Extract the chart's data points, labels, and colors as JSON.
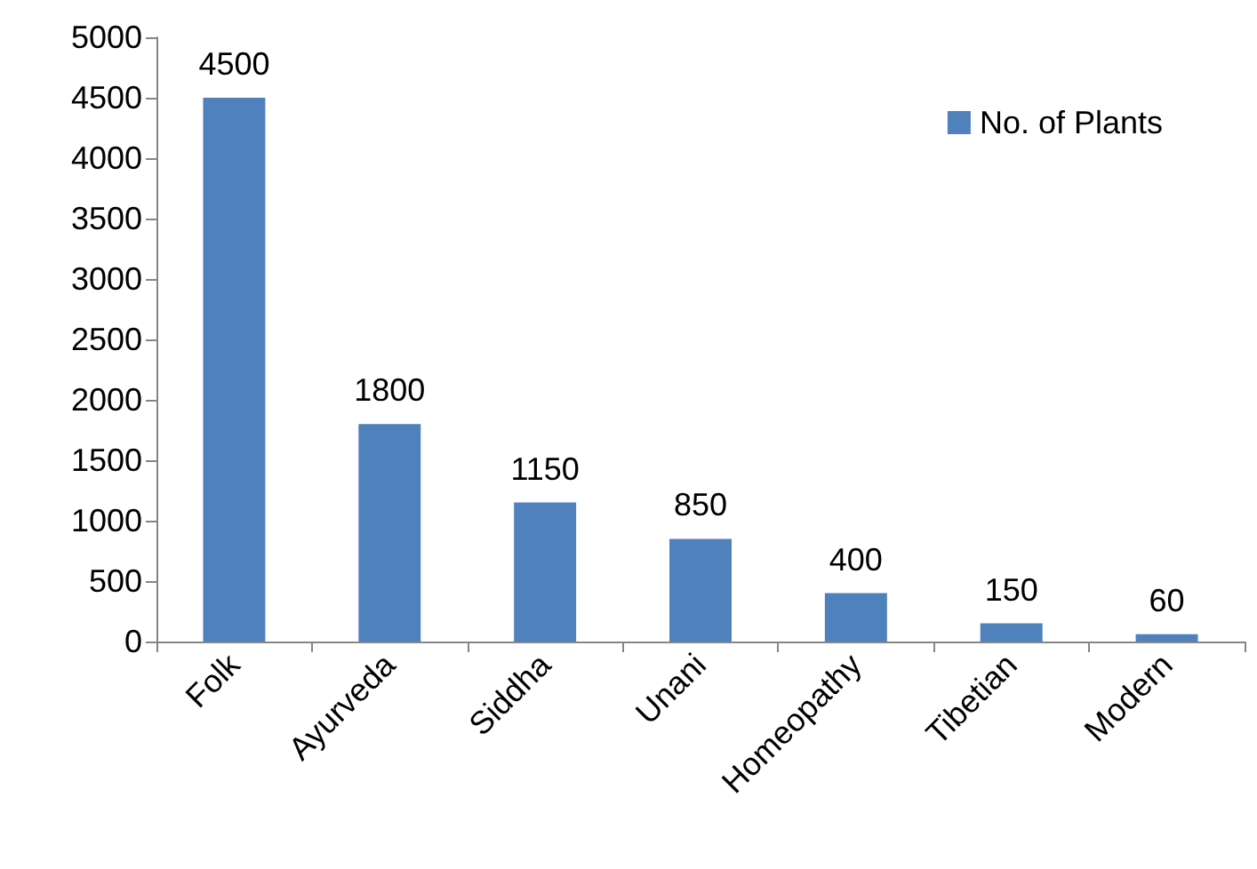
{
  "chart_data": {
    "type": "bar",
    "categories": [
      "Folk",
      "Ayurveda",
      "Siddha",
      "Unani",
      "Homeopathy",
      "Tibetian",
      "Modern"
    ],
    "series": [
      {
        "name": "No. of Plants",
        "color": "#4f81bd",
        "values": [
          4500,
          1800,
          1150,
          850,
          400,
          150,
          60
        ]
      }
    ],
    "ylim": [
      0,
      5000
    ],
    "yticks": [
      0,
      500,
      1000,
      1500,
      2000,
      2500,
      3000,
      3500,
      4000,
      4500,
      5000
    ],
    "grid": false,
    "legend": "top right",
    "data_labels": true
  }
}
